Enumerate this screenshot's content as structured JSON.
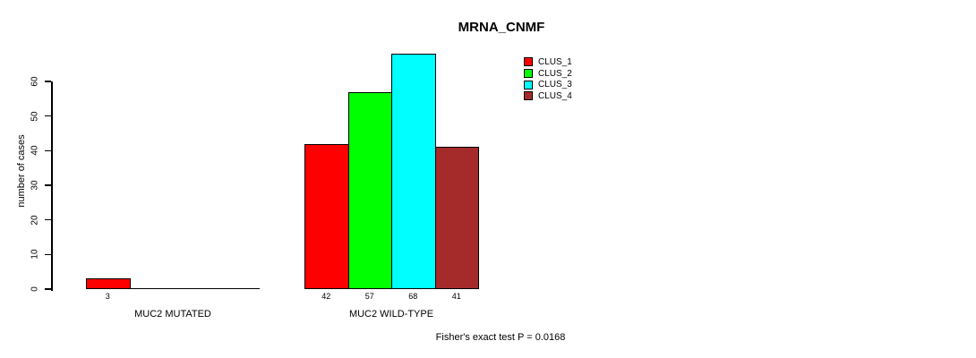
{
  "chart_data": {
    "type": "bar",
    "title": "MRNA_CNMF",
    "ylabel": "number of cases",
    "xlabel": "",
    "ylim": [
      0,
      60
    ],
    "yticks": [
      0,
      10,
      20,
      30,
      40,
      50,
      60
    ],
    "grid": false,
    "legend_position": "top-right",
    "series": [
      {
        "name": "CLUS_1",
        "color": "#FF0000"
      },
      {
        "name": "CLUS_2",
        "color": "#00FF00"
      },
      {
        "name": "CLUS_3",
        "color": "#00FFFF"
      },
      {
        "name": "CLUS_4",
        "color": "#A52A2A"
      }
    ],
    "groups": [
      {
        "label": "MUC2 MUTATED",
        "values": [
          3,
          null,
          null,
          null
        ]
      },
      {
        "label": "MUC2 WILD-TYPE",
        "values": [
          42,
          57,
          68,
          41
        ]
      }
    ],
    "footnote": "Fisher's exact test P = 0.0168",
    "line_color": "#000000",
    "background": "#FFFFFF"
  }
}
